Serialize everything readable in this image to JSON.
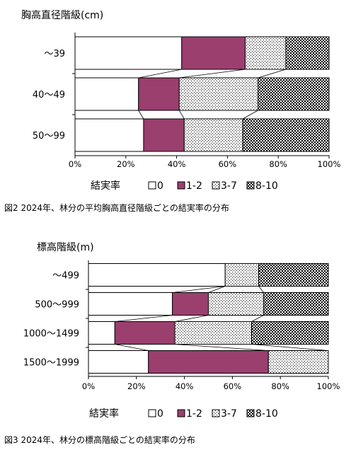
{
  "legend_title": "結実率",
  "colors": {
    "c0": "#ffffff",
    "c12": "#9a3f6e",
    "c37": "#ffffff",
    "c810": "#ffffff",
    "axis": "#000000"
  },
  "chart_data": [
    {
      "type": "bar",
      "orientation": "horizontal",
      "stacked": "percent",
      "title": "胸高直径階級(cm)",
      "caption": "図2  2024年、林分の平均胸高直径階級ごとの結実率の分布",
      "categories": [
        "～39",
        "40～49",
        "50～99"
      ],
      "series": [
        {
          "name": "0",
          "values": [
            42,
            25,
            27
          ]
        },
        {
          "name": "1-2",
          "values": [
            25,
            16,
            16
          ]
        },
        {
          "name": "3-7",
          "values": [
            16,
            31,
            23
          ]
        },
        {
          "name": "8-10",
          "values": [
            17,
            28,
            34
          ]
        }
      ],
      "xlim": [
        0,
        100
      ],
      "xticks": [
        "0%",
        "20%",
        "40%",
        "60%",
        "80%",
        "100%"
      ],
      "grid": false,
      "legend": "bottom"
    },
    {
      "type": "bar",
      "orientation": "horizontal",
      "stacked": "percent",
      "title": "標高階級(m)",
      "caption": "図3  2024年、林分の標高階級ごとの結実率の分布",
      "categories": [
        "～499",
        "500～999",
        "1000～1499",
        "1500～1999"
      ],
      "series": [
        {
          "name": "0",
          "values": [
            57,
            35,
            11,
            25
          ]
        },
        {
          "name": "1-2",
          "values": [
            0,
            15,
            25,
            50
          ]
        },
        {
          "name": "3-7",
          "values": [
            14,
            23,
            32,
            25
          ]
        },
        {
          "name": "8-10",
          "values": [
            29,
            27,
            32,
            0
          ]
        }
      ],
      "xlim": [
        0,
        100
      ],
      "xticks": [
        "0%",
        "20%",
        "40%",
        "60%",
        "80%",
        "100%"
      ],
      "grid": false,
      "legend": "bottom"
    }
  ]
}
